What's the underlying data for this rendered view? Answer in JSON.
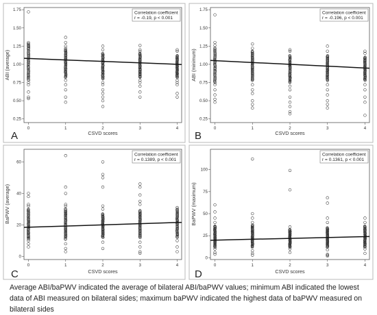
{
  "caption": "Average ABI/baPWV indicated the average of bilateral ABI/baPWV values; minimum ABI indicated the lowest data of ABI measured on bilateral sides; maximum baPWV indicated the highest data of baPWV measured on bilateral sides",
  "chart_data": [
    {
      "panel": "A",
      "type": "scatter",
      "xlabel": "CSVD scores",
      "ylabel": "ABI (average)",
      "x_ticks": [
        0,
        1,
        2,
        3,
        4
      ],
      "y_ticks": [
        "0.25",
        "0.50",
        "0.75",
        "1.00",
        "1.25",
        "1.50",
        "1.75"
      ],
      "xlim": [
        -0.12,
        4.12
      ],
      "ylim": [
        0.2,
        1.78
      ],
      "stats_title": "Correlation coefficient",
      "stats_text": "r = -0.19, p < 0.001",
      "regression": {
        "x": [
          0,
          4
        ],
        "y": [
          1.08,
          1.0
        ]
      },
      "point_groups": [
        {
          "x": 0,
          "low": 0.78,
          "high": 1.28,
          "points": [
            1.72,
            1.3,
            1.28,
            1.25,
            0.75,
            0.72,
            0.62,
            0.55,
            0.53
          ]
        },
        {
          "x": 1,
          "low": 0.82,
          "high": 1.2,
          "points": [
            1.37,
            1.3,
            1.25,
            1.22,
            0.78,
            0.72,
            0.65,
            0.55,
            0.48
          ]
        },
        {
          "x": 2,
          "low": 0.8,
          "high": 1.15,
          "points": [
            1.25,
            1.2,
            0.75,
            0.72,
            0.65,
            0.6,
            0.55,
            0.5,
            0.42
          ]
        },
        {
          "x": 3,
          "low": 0.82,
          "high": 1.15,
          "points": [
            1.26,
            1.2,
            1.18,
            0.78,
            0.75,
            0.7,
            0.62,
            0.55
          ]
        },
        {
          "x": 4,
          "low": 0.82,
          "high": 1.12,
          "points": [
            1.2,
            1.18,
            0.78,
            0.75,
            0.72,
            0.6,
            0.55
          ]
        }
      ]
    },
    {
      "panel": "B",
      "type": "scatter",
      "xlabel": "CSVD scores",
      "ylabel": "ABI (minimum)",
      "x_ticks": [
        0,
        1,
        2,
        3,
        4
      ],
      "y_ticks": [
        "0.25",
        "0.50",
        "0.75",
        "1.00",
        "1.25",
        "1.50",
        "1.75"
      ],
      "xlim": [
        -0.12,
        4.12
      ],
      "ylim": [
        0.2,
        1.78
      ],
      "stats_title": "Correlation coefficient",
      "stats_text": "r = -0.196, p < 0.001",
      "regression": {
        "x": [
          0,
          4
        ],
        "y": [
          1.05,
          0.95
        ]
      },
      "point_groups": [
        {
          "x": 0,
          "low": 0.75,
          "high": 1.22,
          "points": [
            1.68,
            1.3,
            1.26,
            0.72,
            0.65,
            0.58,
            0.52,
            0.48
          ]
        },
        {
          "x": 1,
          "low": 0.78,
          "high": 1.18,
          "points": [
            1.28,
            1.22,
            0.72,
            0.65,
            0.6,
            0.5,
            0.45,
            0.4
          ]
        },
        {
          "x": 2,
          "low": 0.75,
          "high": 1.12,
          "points": [
            1.2,
            1.18,
            0.7,
            0.65,
            0.55,
            0.48,
            0.42,
            0.35,
            0.32
          ]
        },
        {
          "x": 3,
          "low": 0.78,
          "high": 1.12,
          "points": [
            1.25,
            1.18,
            0.72,
            0.65,
            0.58,
            0.5,
            0.45,
            0.4
          ]
        },
        {
          "x": 4,
          "low": 0.78,
          "high": 1.1,
          "points": [
            1.18,
            1.15,
            0.72,
            0.65,
            0.55,
            0.48,
            0.3
          ]
        }
      ]
    },
    {
      "panel": "C",
      "type": "scatter",
      "xlabel": "CSVD scores",
      "ylabel": "BaPWV (average)",
      "x_ticks": [
        0,
        1,
        2,
        3,
        4
      ],
      "y_ticks": [
        "0",
        "20",
        "40",
        "60"
      ],
      "xlim": [
        -0.12,
        4.12
      ],
      "ylim": [
        -2,
        68
      ],
      "stats_title": "Correlation coefficient",
      "stats_text": "r = 0.1389, p < 0.001",
      "regression": {
        "x": [
          0,
          4
        ],
        "y": [
          18.5,
          21.5
        ]
      },
      "point_groups": [
        {
          "x": 0,
          "low": 11,
          "high": 30,
          "points": [
            40,
            38,
            33,
            32,
            10,
            8,
            6
          ]
        },
        {
          "x": 1,
          "low": 11,
          "high": 30,
          "points": [
            64,
            44,
            40,
            33,
            32,
            8,
            5,
            3
          ]
        },
        {
          "x": 2,
          "low": 12,
          "high": 27,
          "points": [
            60,
            52,
            50,
            44,
            32,
            30,
            9,
            5
          ]
        },
        {
          "x": 3,
          "low": 12,
          "high": 29,
          "points": [
            46,
            44,
            39,
            35,
            33,
            9,
            6,
            3,
            2
          ]
        },
        {
          "x": 4,
          "low": 12,
          "high": 30,
          "points": [
            31,
            10,
            6,
            3
          ]
        }
      ]
    },
    {
      "panel": "D",
      "type": "scatter",
      "xlabel": "CSVD scores",
      "ylabel": "BaPWV (maximum)",
      "x_ticks": [
        0,
        1,
        2,
        3,
        4
      ],
      "y_ticks": [
        "0",
        "25",
        "50",
        "75",
        "100"
      ],
      "xlim": [
        -0.12,
        4.12
      ],
      "ylim": [
        -2,
        123
      ],
      "stats_title": "Correlation coefficient",
      "stats_text": "r = 0.1361, p < 0.001",
      "regression": {
        "x": [
          0,
          4
        ],
        "y": [
          20,
          24
        ]
      },
      "point_groups": [
        {
          "x": 0,
          "low": 12,
          "high": 36,
          "points": [
            60,
            52,
            45,
            40,
            10,
            6,
            4
          ]
        },
        {
          "x": 1,
          "low": 12,
          "high": 37,
          "points": [
            112,
            50,
            45,
            40,
            8,
            5,
            3
          ]
        },
        {
          "x": 2,
          "low": 12,
          "high": 32,
          "points": [
            99,
            77,
            35,
            10,
            6
          ]
        },
        {
          "x": 3,
          "low": 12,
          "high": 34,
          "points": [
            68,
            62,
            45,
            40,
            9,
            4,
            3,
            2
          ]
        },
        {
          "x": 4,
          "low": 12,
          "high": 36,
          "points": [
            45,
            40,
            10,
            5
          ]
        }
      ]
    }
  ]
}
